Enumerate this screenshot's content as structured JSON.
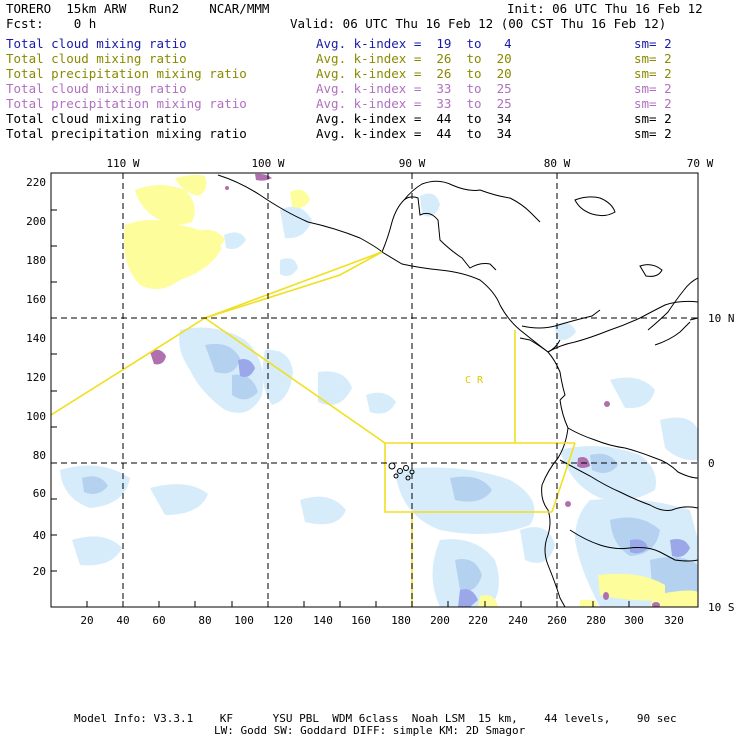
{
  "header": {
    "model_title": "TORERO  15km ARW   Run2    NCAR/MMM",
    "init_label": "Init: 06 UTC Thu 16 Feb 12",
    "fcst_label": "Fcst:    0 h",
    "valid_label": "Valid: 06 UTC Thu 16 Feb 12 (00 CST Thu 16 Feb 12)"
  },
  "legend": [
    {
      "field": "Total cloud mixing ratio",
      "kindex": "Avg. k-index =  19  to   4",
      "sm": "sm= 2",
      "color": "#1a1aa8"
    },
    {
      "field": "Total cloud mixing ratio",
      "kindex": "Avg. k-index =  26  to  20",
      "sm": "sm= 2",
      "color": "#8a8a00"
    },
    {
      "field": "Total precipitation mixing ratio",
      "kindex": "Avg. k-index =  26  to  20",
      "sm": "sm= 2",
      "color": "#8a8a00"
    },
    {
      "field": "Total cloud mixing ratio",
      "kindex": "Avg. k-index =  33  to  25",
      "sm": "sm= 2",
      "color": "#b070c0"
    },
    {
      "field": "Total precipitation mixing ratio",
      "kindex": "Avg. k-index =  33  to  25",
      "sm": "sm= 2",
      "color": "#b070c0"
    },
    {
      "field": "Total cloud mixing ratio",
      "kindex": "Avg. k-index =  44  to  34",
      "sm": "sm= 2",
      "color": "#000000"
    },
    {
      "field": "Total precipitation mixing ratio",
      "kindex": "Avg. k-index =  44  to  34",
      "sm": "sm= 2",
      "color": "#000000"
    }
  ],
  "map": {
    "x_grid_ticks": [
      "20",
      "40",
      "60",
      "80",
      "100",
      "120",
      "140",
      "160",
      "180",
      "200",
      "220",
      "240",
      "260",
      "280",
      "300",
      "320"
    ],
    "y_grid_ticks": [
      "20",
      "40",
      "60",
      "80",
      "100",
      "120",
      "140",
      "160",
      "180",
      "200",
      "220"
    ],
    "lon_labels": [
      "110 W",
      "100 W",
      "90 W",
      "80 W",
      "70 W"
    ],
    "lat_labels": [
      "10 N",
      "0",
      "10 S"
    ],
    "region_label": "C  R",
    "colors": {
      "light_blue": "#d6ecfa",
      "mid_blue": "#b4d2f0",
      "dark_blue": "#9aa8ea",
      "yellow": "#fdfd9c",
      "purple": "#b070b0",
      "flight_track": "#f0e020"
    }
  },
  "footer": {
    "line1": "Model Info: V3.3.1    KF      YSU PBL  WDM 6class  Noah LSM  15 km,    44 levels,    90 sec",
    "line2": "LW: Godd SW: Goddard DIFF: simple KM: 2D Smagor"
  }
}
